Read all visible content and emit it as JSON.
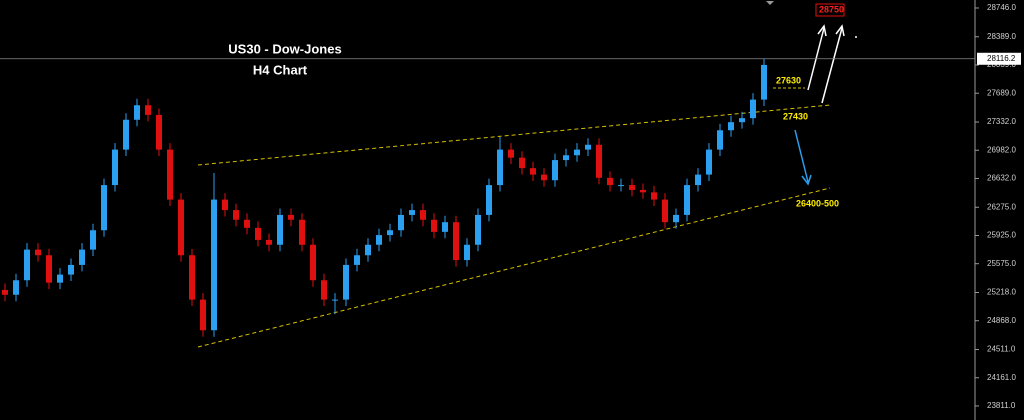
{
  "chart_data": {
    "type": "candlestick",
    "title": "US30 - Dow-Jones",
    "subtitle": "H4 Chart",
    "up_color": "#2b9ff0",
    "down_color": "#e01010",
    "open": [
      25250,
      25190,
      25370,
      25750,
      25680,
      25340,
      25440,
      25560,
      25750,
      25990,
      26550,
      26990,
      27360,
      27540,
      27420,
      26990,
      26370,
      25680,
      25130,
      24750,
      26370,
      26240,
      26120,
      26020,
      25870,
      25810,
      26180,
      26120,
      25810,
      25370,
      25130,
      25130,
      25560,
      25680,
      25810,
      25930,
      25990,
      26180,
      26240,
      26120,
      25970,
      26090,
      25620,
      25810,
      26180,
      26550,
      26990,
      26890,
      26760,
      26680,
      26610,
      26860,
      26920,
      26990,
      27050,
      26640,
      26550,
      26550,
      26490,
      26460,
      26370,
      26090,
      26180,
      26550,
      26680,
      26990,
      27230,
      27330,
      27380,
      27610
    ],
    "high": [
      25330,
      25450,
      25830,
      25830,
      25760,
      25520,
      25640,
      25830,
      26070,
      26630,
      27070,
      27440,
      27620,
      27620,
      27500,
      27070,
      26450,
      25760,
      25210,
      26700,
      26450,
      26320,
      26200,
      26100,
      25950,
      26260,
      26260,
      26200,
      25890,
      25450,
      25210,
      25640,
      25760,
      25890,
      26010,
      26070,
      26260,
      26320,
      26320,
      26200,
      26170,
      26170,
      25890,
      26260,
      26630,
      27150,
      27070,
      26970,
      26840,
      26760,
      26940,
      27000,
      27070,
      27130,
      27130,
      26720,
      26630,
      26630,
      26570,
      26540,
      26450,
      26260,
      26630,
      26760,
      27070,
      27310,
      27410,
      27460,
      27690,
      28120
    ],
    "low": [
      25110,
      25110,
      25290,
      25600,
      25260,
      25260,
      25360,
      25480,
      25670,
      25910,
      26470,
      26910,
      27280,
      27340,
      26910,
      26290,
      25600,
      25050,
      24670,
      24670,
      26160,
      26040,
      25940,
      25790,
      25730,
      25730,
      26040,
      25730,
      25290,
      25050,
      24950,
      25050,
      25480,
      25600,
      25730,
      25850,
      25910,
      26100,
      26040,
      25890,
      25890,
      25540,
      25540,
      25730,
      26100,
      26470,
      26810,
      26680,
      26600,
      26530,
      26530,
      26780,
      26840,
      26910,
      26560,
      26470,
      26470,
      26410,
      26380,
      26290,
      26010,
      26010,
      26100,
      26470,
      26600,
      26910,
      27150,
      27250,
      27300,
      27530
    ],
    "close": [
      25190,
      25370,
      25750,
      25680,
      25340,
      25440,
      25560,
      25750,
      25990,
      26550,
      26990,
      27360,
      27540,
      27420,
      26990,
      26370,
      25680,
      25130,
      24750,
      26370,
      26240,
      26120,
      26020,
      25870,
      25810,
      26180,
      26120,
      25810,
      25370,
      25130,
      25130,
      25560,
      25680,
      25810,
      25930,
      25990,
      26180,
      26240,
      26120,
      25970,
      26090,
      25620,
      25810,
      26180,
      26550,
      26990,
      26890,
      26760,
      26680,
      26610,
      26860,
      26920,
      26990,
      27050,
      26640,
      26550,
      26550,
      26490,
      26460,
      26370,
      26090,
      26180,
      26550,
      26680,
      26990,
      27230,
      27330,
      27380,
      27610,
      28040
    ],
    "ylim": [
      23637,
      28845
    ],
    "yticks": [
      {
        "value": 28746,
        "label": "28746.0"
      },
      {
        "value": 28389,
        "label": "28389.0"
      },
      {
        "value": 28039,
        "label": "28039.0"
      },
      {
        "value": 27689,
        "label": "27689.0"
      },
      {
        "value": 27332,
        "label": "27332.0"
      },
      {
        "value": 26982,
        "label": "26982.0"
      },
      {
        "value": 26632,
        "label": "26632.0"
      },
      {
        "value": 26275,
        "label": "26275.0"
      },
      {
        "value": 25925,
        "label": "25925.0"
      },
      {
        "value": 25575,
        "label": "25575.0"
      },
      {
        "value": 25218,
        "label": "25218.0"
      },
      {
        "value": 24868,
        "label": "24868.0"
      },
      {
        "value": 24511,
        "label": "24511.0"
      },
      {
        "value": 24161,
        "label": "24161.0"
      },
      {
        "value": 23811,
        "label": "23811.0"
      }
    ],
    "last_price": {
      "value": 28116.2,
      "label": "28116.2"
    },
    "annotations": [
      "27630",
      "27430",
      "26400-500",
      "28750"
    ]
  }
}
